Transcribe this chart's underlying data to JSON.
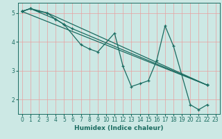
{
  "xlabel": "Humidex (Indice chaleur)",
  "bg_color": "#cce8e4",
  "grid_color": "#e8a0a0",
  "line_color": "#1a6b60",
  "spine_color": "#1a6b60",
  "xlim": [
    -0.5,
    23.5
  ],
  "ylim": [
    1.5,
    5.35
  ],
  "xticks": [
    0,
    1,
    2,
    3,
    4,
    5,
    6,
    7,
    8,
    9,
    10,
    11,
    12,
    13,
    14,
    15,
    16,
    17,
    18,
    19,
    20,
    21,
    22,
    23
  ],
  "yticks": [
    2,
    3,
    4,
    5
  ],
  "lines": [
    {
      "x": [
        0,
        1,
        2,
        3,
        4,
        5,
        7,
        8,
        9,
        11,
        12,
        13,
        14,
        15,
        16,
        17,
        18,
        20,
        21,
        22
      ],
      "y": [
        5.05,
        5.15,
        5.05,
        5.0,
        4.78,
        4.6,
        3.9,
        3.75,
        3.65,
        4.3,
        3.15,
        2.45,
        2.55,
        2.65,
        3.35,
        4.55,
        3.85,
        1.82,
        1.65,
        1.82
      ]
    },
    {
      "x": [
        0,
        1,
        4,
        5,
        6,
        22
      ],
      "y": [
        5.05,
        5.15,
        4.78,
        4.6,
        4.45,
        2.5
      ]
    },
    {
      "x": [
        0,
        1,
        3,
        22
      ],
      "y": [
        5.05,
        5.15,
        5.0,
        2.5
      ]
    },
    {
      "x": [
        0,
        22
      ],
      "y": [
        5.05,
        2.5
      ]
    }
  ],
  "xlabel_fontsize": 6.5,
  "tick_fontsize": 5.5,
  "linewidth": 0.9,
  "markersize": 3.5
}
